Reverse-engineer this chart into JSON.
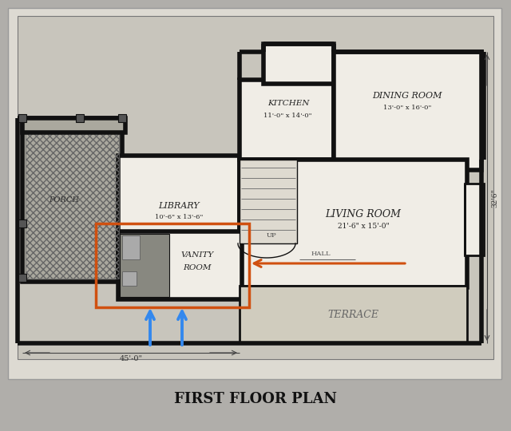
{
  "title": "FIRST FLOOR PLAN",
  "bg_outer": "#b0aeaa",
  "bg_paper": "#dddad2",
  "bg_plan": "#c8c5bc",
  "wall_color": "#111111",
  "room_fill": "#f0ede6",
  "porch_fill": "#b8b4aa",
  "orange_color": "#d05010",
  "blue_color": "#3388ee",
  "title_fontsize": 13,
  "rooms": {
    "dining_room_label": "DINING ROOM",
    "dining_room_dim": "13'-0\" x 16'-0\"",
    "kitchen_label": "KITCHEN",
    "kitchen_dim": "11'-0\" x 14'-0\"",
    "library_label": "LIBRARY",
    "library_dim": "10'-6\" x 13'-6\"",
    "living_room_label": "LIVING ROOM",
    "living_room_dim": "21'-6\" x 15'-0\"",
    "vanity_label1": "VANITY",
    "vanity_label2": "ROOM",
    "terrace_label": "TERRACE",
    "porch_label": "PORCH",
    "hall_label": "HALL",
    "up_label": "UP"
  },
  "dim_bottom": "45'-0\"",
  "dim_side": "32'6\""
}
